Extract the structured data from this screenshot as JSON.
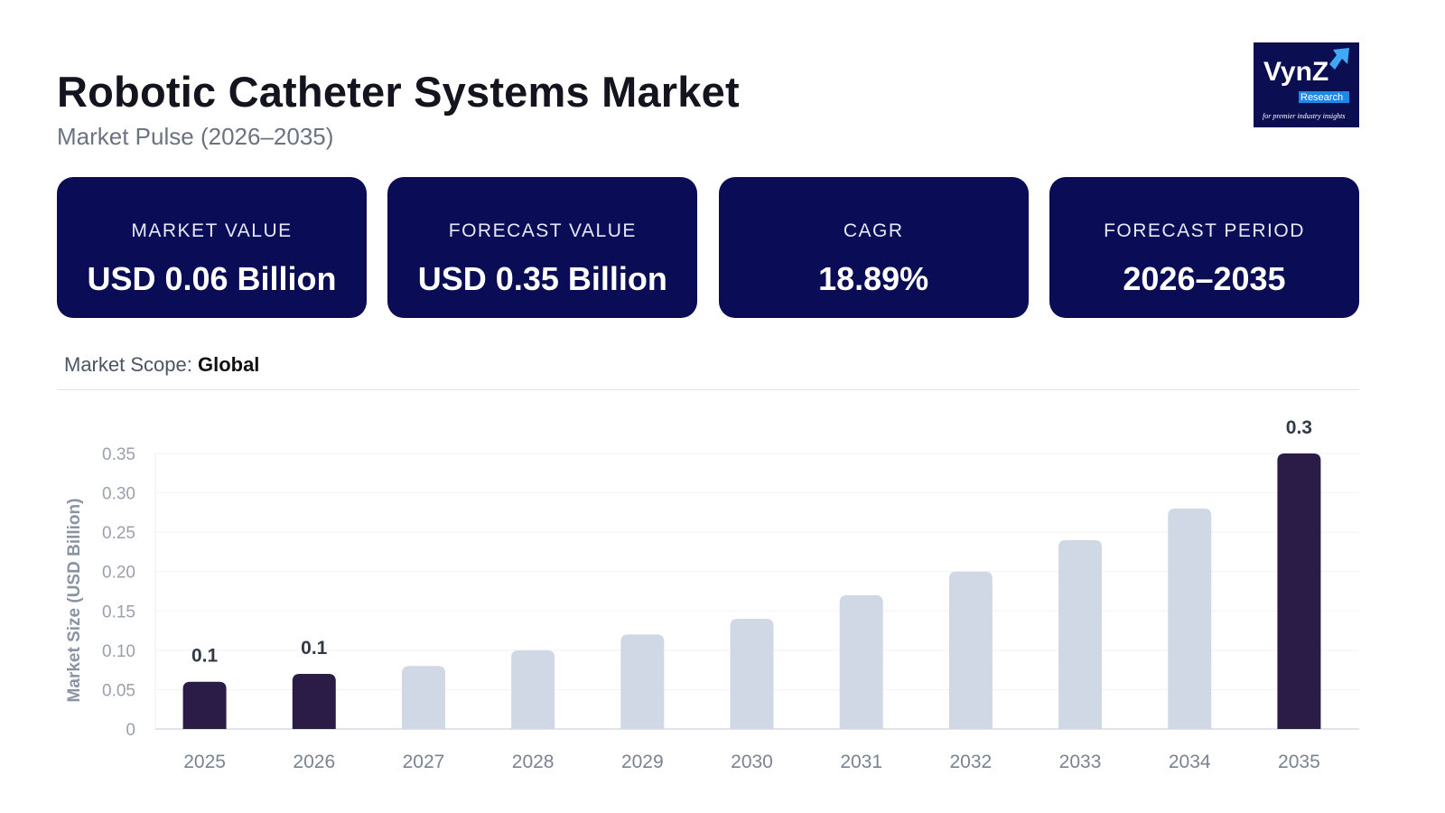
{
  "header": {
    "title": "Robotic Catheter Systems Market",
    "subtitle": "Market Pulse (2026–2035)"
  },
  "logo": {
    "text": "VynZ",
    "badge": "Research",
    "tagline": "for premier industry insights"
  },
  "cards": [
    {
      "label": "MARKET VALUE",
      "value": "USD 0.06 Billion"
    },
    {
      "label": "FORECAST VALUE",
      "value": "USD 0.35 Billion"
    },
    {
      "label": "CAGR",
      "value": "18.89%"
    },
    {
      "label": "FORECAST PERIOD",
      "value": "2026–2035"
    }
  ],
  "scope": {
    "label": "Market Scope:",
    "value": "Global"
  },
  "colors": {
    "card_bg": "#0a0c55",
    "highlight_bar": "#2b1c47",
    "regular_bar": "#cfd8e4"
  },
  "chart_data": {
    "type": "bar",
    "ylabel": "Market Size (USD Billion)",
    "xlabel": "",
    "ylim": [
      0,
      0.35
    ],
    "yticks": [
      "0",
      "0.05",
      "0.10",
      "0.15",
      "0.20",
      "0.25",
      "0.30",
      "0.35"
    ],
    "grid": true,
    "categories": [
      "2025",
      "2026",
      "2027",
      "2028",
      "2029",
      "2030",
      "2031",
      "2032",
      "2033",
      "2034",
      "2035"
    ],
    "values": [
      0.06,
      0.07,
      0.08,
      0.1,
      0.12,
      0.14,
      0.17,
      0.2,
      0.24,
      0.28,
      0.35
    ],
    "highlighted": [
      "2025",
      "2026",
      "2035"
    ],
    "data_labels": {
      "2025": "0.1",
      "2026": "0.1",
      "2035": "0.3"
    }
  }
}
